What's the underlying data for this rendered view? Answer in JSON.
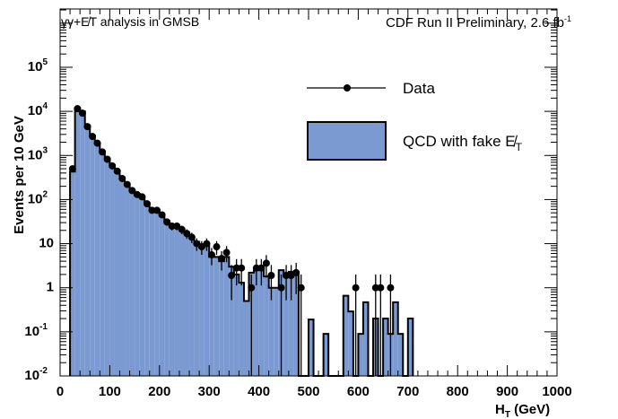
{
  "chart_data": {
    "type": "bar",
    "title_left": "γγ+E̸T analysis in GMSB",
    "title_right": "CDF Run II Preliminary, 2.6 fb",
    "title_right_sup": "-1",
    "xlabel": "H",
    "xlabel_sub": "T",
    "xlabel_unit": " (GeV)",
    "ylabel": "Events per 10 GeV",
    "xlim": [
      0,
      1000
    ],
    "ylim": [
      0.01,
      2100000
    ],
    "yscale": "log",
    "bin_width": 10,
    "x_ticks": [
      "0",
      "100",
      "200",
      "300",
      "400",
      "500",
      "600",
      "700",
      "800",
      "900",
      "1000"
    ],
    "y_ticks": [
      {
        "base": "10",
        "exp": "-2"
      },
      {
        "base": "10",
        "exp": "-1"
      },
      {
        "base": "1",
        "exp": ""
      },
      {
        "base": "10",
        "exp": ""
      },
      {
        "base": "10",
        "exp": "2"
      },
      {
        "base": "10",
        "exp": "3"
      },
      {
        "base": "10",
        "exp": "4"
      },
      {
        "base": "10",
        "exp": "5"
      }
    ],
    "legend": {
      "placement": "top-right",
      "data_label": "Data",
      "mc_label": "QCD with fake E̸",
      "mc_label_sub": "T"
    },
    "colors": {
      "mc_fill": "#7b9ad2",
      "line": "#000000"
    },
    "bin_low_edges": [
      20,
      30,
      40,
      50,
      60,
      70,
      80,
      90,
      100,
      110,
      120,
      130,
      140,
      150,
      160,
      170,
      180,
      190,
      200,
      210,
      220,
      230,
      240,
      250,
      260,
      270,
      280,
      290,
      300,
      310,
      320,
      330,
      340,
      350,
      360,
      370,
      380,
      390,
      400,
      410,
      420,
      430,
      440,
      450,
      460,
      470,
      480,
      490,
      500,
      510,
      520,
      530,
      540,
      550,
      560,
      570,
      580,
      590,
      600,
      610,
      620,
      630,
      640,
      650,
      660,
      670,
      680,
      690,
      700
    ],
    "series": [
      {
        "name": "QCD with fake MET",
        "values": [
          430,
          12000,
          10000,
          4800,
          2800,
          1900,
          1250,
          850,
          600,
          450,
          310,
          230,
          165,
          135,
          115,
          85,
          60,
          57,
          46,
          33,
          26,
          25,
          21,
          18,
          14,
          11,
          9,
          9.5,
          5,
          5,
          4,
          5,
          3,
          2,
          1.3,
          0.5,
          2.2,
          2.5,
          3,
          1.8,
          1,
          1,
          2.5,
          1.8,
          2.3,
          2.3,
          0,
          0,
          0.19,
          0,
          0,
          0.09,
          0,
          0,
          0,
          0.66,
          0.29,
          0,
          0.09,
          0.47,
          0,
          0.2,
          0,
          0.2,
          0.09,
          0.47,
          0.09,
          0,
          0.2
        ]
      },
      {
        "name": "Data",
        "values": [
          500,
          11500,
          9100,
          4500,
          2700,
          1900,
          1200,
          820,
          580,
          440,
          300,
          220,
          160,
          130,
          115,
          80,
          57,
          57,
          45,
          31,
          25,
          25,
          21,
          17,
          14,
          10,
          8.5,
          10,
          5.6,
          8.5,
          4.6,
          6.3,
          1.9,
          2.8,
          2.8,
          0,
          1,
          2.8,
          2.8,
          3.6,
          1.9,
          0,
          1,
          1.9,
          1.9,
          2.2,
          1,
          0,
          0,
          0,
          0,
          0,
          0,
          0,
          0,
          0,
          0,
          1,
          0,
          0,
          0,
          1,
          1,
          0,
          1,
          0,
          0,
          0,
          0
        ]
      }
    ]
  }
}
